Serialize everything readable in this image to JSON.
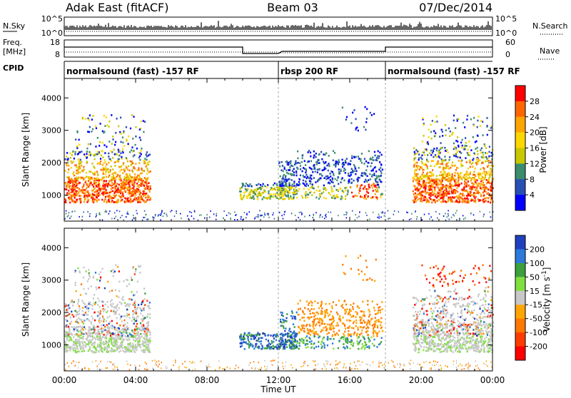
{
  "header": {
    "title_left": "Adak East (fitACF)",
    "title_center": "Beam 03",
    "title_right": "07/Dec/2014"
  },
  "strip_labels": {
    "nsky": "N.Sky",
    "nsearch": "N.Search",
    "freq": "Freq.",
    "freq_unit": "[MHz]",
    "nave": "Nave",
    "cpid": "CPID"
  },
  "strip_ticks": {
    "nsky_left": [
      "10^5",
      "10^0"
    ],
    "nsky_right": [
      "10^5",
      "10^0"
    ],
    "freq_left": [
      "18",
      "8"
    ],
    "nave_right": [
      "60",
      "0"
    ]
  },
  "cpid_segments": [
    {
      "label": "normalsound (fast) -157 RF",
      "start_hour": 0,
      "end_hour": 12
    },
    {
      "label": "rbsp 200 RF",
      "start_hour": 12,
      "end_hour": 18
    },
    {
      "label": "normalsound (fast) -157 RF",
      "start_hour": 18,
      "end_hour": 24
    }
  ],
  "chart_data": [
    {
      "type": "heatmap",
      "title": "",
      "ylabel": "Slant Range [km]",
      "xlabel": "",
      "ylim": [
        200,
        4600
      ],
      "xlim": [
        0,
        24
      ],
      "yticks": [
        1000,
        2000,
        3000,
        4000
      ],
      "colorbar": {
        "label": "Power [dB]",
        "ticks": [
          "28",
          "24",
          "20",
          "16",
          "12",
          "8",
          "4"
        ],
        "colors": [
          "#ff0000",
          "#ff6600",
          "#ffa500",
          "#ffd700",
          "#c8c800",
          "#3c8c6e",
          "#2850b4",
          "#0000ff"
        ]
      },
      "regions": [
        {
          "start_hour": 0.0,
          "end_hour": 4.8,
          "range_min": 800,
          "range_max": 3400
        },
        {
          "start_hour": 9.5,
          "end_hour": 17.8,
          "range_min": 900,
          "range_max": 2300
        },
        {
          "start_hour": 19.5,
          "end_hour": 24.0,
          "range_min": 800,
          "range_max": 3400
        }
      ]
    },
    {
      "type": "heatmap",
      "title": "",
      "ylabel": "Slant Range [km]",
      "xlabel": "Time UT",
      "ylim": [
        200,
        4600
      ],
      "xlim": [
        0,
        24
      ],
      "yticks": [
        1000,
        2000,
        3000,
        4000
      ],
      "xticks": [
        "00:00",
        "04:00",
        "08:00",
        "12:00",
        "16:00",
        "20:00",
        "00:00"
      ],
      "colorbar": {
        "label": "Velocity [m s^-1]",
        "ticks": [
          "200",
          "100",
          "50",
          "15",
          "-15",
          "-50",
          "-100",
          "-200"
        ],
        "colors": [
          "#2040c0",
          "#2d7adb",
          "#3ca03c",
          "#80e040",
          "#c8c8c8",
          "#ffa500",
          "#ff7800",
          "#ff3c00",
          "#ff0000"
        ]
      },
      "regions": [
        {
          "start_hour": 0.0,
          "end_hour": 4.8,
          "range_min": 800,
          "range_max": 3400
        },
        {
          "start_hour": 9.5,
          "end_hour": 17.8,
          "range_min": 900,
          "range_max": 2300
        },
        {
          "start_hour": 19.5,
          "end_hour": 24.0,
          "range_min": 800,
          "range_max": 3400
        }
      ]
    }
  ]
}
